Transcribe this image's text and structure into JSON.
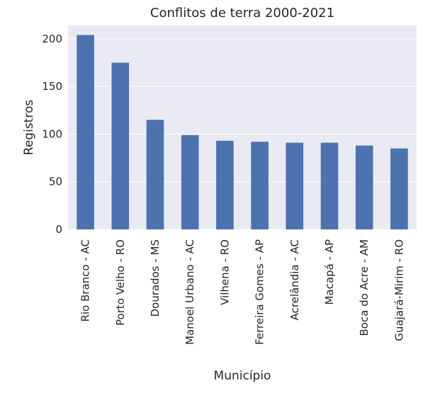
{
  "chart_data": {
    "type": "bar",
    "title": "Conflitos de terra 2000-2021",
    "xlabel": "Município",
    "ylabel": "Registros",
    "categories": [
      "Rio Branco - AC",
      "Porto Velho - RO",
      "Dourados - MS",
      "Manoel Urbano - AC",
      "Vilhena - RO",
      "Ferreira Gomes - AP",
      "Acrelândia - AC",
      "Macapá - AP",
      "Boca do Acre - AM",
      "Guajará-Mirim - RO"
    ],
    "values": [
      204,
      175,
      115,
      99,
      93,
      92,
      91,
      91,
      88,
      85
    ],
    "ylim": [
      0,
      214
    ],
    "yticks": [
      0,
      50,
      100,
      150,
      200
    ],
    "grid": true,
    "colors": {
      "bar": "#4c72b0",
      "plot_background": "#eaeaf2",
      "grid": "#ffffff"
    }
  }
}
